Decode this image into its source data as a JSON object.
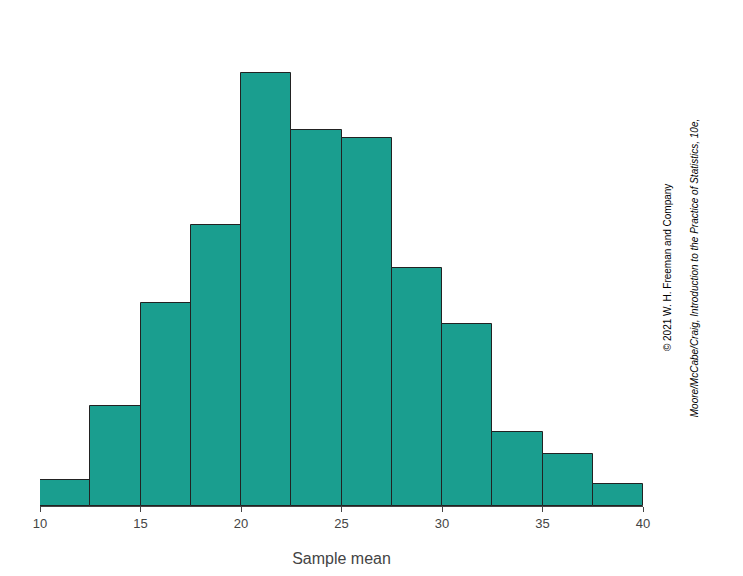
{
  "chart_data": {
    "type": "histogram",
    "bins": [
      10,
      12.5,
      15,
      17.5,
      20,
      22.5,
      25,
      27.5,
      30,
      32.5,
      35,
      37.5,
      40
    ],
    "values": [
      0.6,
      2.3,
      4.7,
      6.5,
      10.0,
      8.7,
      8.5,
      5.5,
      4.2,
      1.7,
      1.2,
      0.5
    ],
    "color": "#1A9E8F",
    "xlabel": "Sample mean",
    "xlim": [
      10,
      40
    ],
    "xticks": [
      10,
      15,
      20,
      25,
      30,
      35,
      40
    ],
    "ylim": [
      0,
      11
    ],
    "tick_labels": "x",
    "grid": false,
    "annotations": [
      "Moore/McCabe/Craig, Introduction to the Practice of Statistics, 10e,",
      "© 2021 W. H. Freeman and Company"
    ]
  }
}
